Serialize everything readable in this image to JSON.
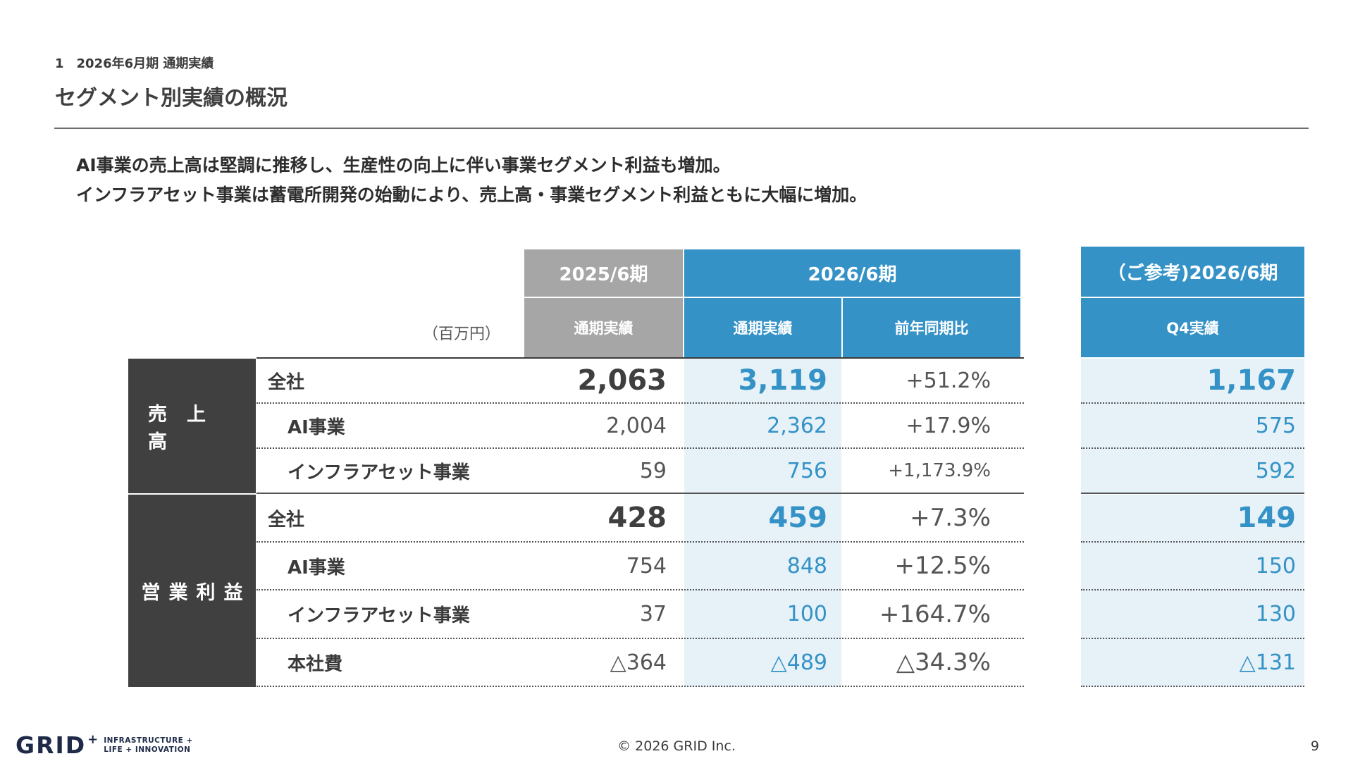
{
  "breadcrumb": "1　2026年6月期 通期実績",
  "title": "セグメント別実績の概況",
  "summary": [
    "AI事業の売上高は堅調に推移し、生産性の向上に伴い事業セグメント利益も増加。",
    "インフラアセット事業は蓄電所開発の始動により、売上高・事業セグメント利益ともに大幅に増加。"
  ],
  "table": {
    "unit": "（百万円）",
    "period_prev": "2025/6期",
    "period_curr": "2026/6期",
    "period_ref": "（ご参考)2026/6期",
    "col_prev_actual": "通期実績",
    "col_curr_actual": "通期実績",
    "col_yoy": "前年同期比",
    "col_q4": "Q4実績",
    "sales": {
      "category": "売上高",
      "rows": [
        {
          "label": "全社",
          "prev": "2,063",
          "curr": "3,119",
          "yoy": "+51.2%",
          "q4": "1,167"
        },
        {
          "label": "AI事業",
          "prev": "2,004",
          "curr": "2,362",
          "yoy": "+17.9%",
          "q4": "575"
        },
        {
          "label": "インフラアセット事業",
          "prev": "59",
          "curr": "756",
          "yoy": "+1,173.9%",
          "q4": "592"
        }
      ]
    },
    "op_profit": {
      "category": "営業利益",
      "rows": [
        {
          "label": "全社",
          "prev": "428",
          "curr": "459",
          "yoy": "+7.3%",
          "q4": "149"
        },
        {
          "label": "AI事業",
          "prev": "754",
          "curr": "848",
          "yoy": "+12.5%",
          "q4": "150"
        },
        {
          "label": "インフラアセット事業",
          "prev": "37",
          "curr": "100",
          "yoy": "+164.7%",
          "q4": "130"
        },
        {
          "label": "本社費",
          "prev": "△364",
          "curr": "△489",
          "yoy": "△34.3%",
          "q4": "△131"
        }
      ]
    }
  },
  "footer": {
    "logo_word": "GRID",
    "logo_plus": "+",
    "logo_tagline_1": "INFRASTRUCTURE +",
    "logo_tagline_2": "LIFE + INNOVATION",
    "copyright": "© 2026 GRID Inc.",
    "page_number": "9"
  },
  "colors": {
    "accent_blue": "#3492c7",
    "header_gray": "#a6a6a6",
    "category_dark": "#404040",
    "highlight_bg": "#e6f2f8"
  }
}
